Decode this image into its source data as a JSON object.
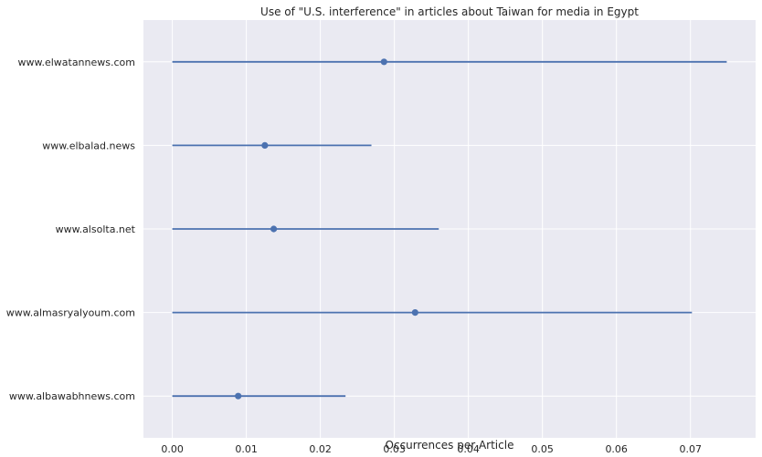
{
  "chart_data": {
    "type": "scatter",
    "title": "Use of \"U.S. interference\" in articles about Taiwan for media in Egypt",
    "xlabel": "Occurrences per Article",
    "ylabel": "",
    "xlim": [
      -0.0039,
      0.0788
    ],
    "xticks": [
      "0.00",
      "0.01",
      "0.02",
      "0.03",
      "0.04",
      "0.05",
      "0.06",
      "0.07"
    ],
    "categories": [
      "www.elwatannews.com",
      "www.elbalad.news",
      "www.alsolta.net",
      "www.almasryalyoum.com",
      "www.albawabhnews.com"
    ],
    "points": [
      {
        "label": "www.elwatannews.com",
        "value": 0.0286,
        "low": 0.0,
        "high": 0.0749
      },
      {
        "label": "www.elbalad.news",
        "value": 0.0125,
        "low": 0.0,
        "high": 0.0269
      },
      {
        "label": "www.alsolta.net",
        "value": 0.0137,
        "low": 0.0,
        "high": 0.036
      },
      {
        "label": "www.almasryalyoum.com",
        "value": 0.0328,
        "low": 0.0,
        "high": 0.0702
      },
      {
        "label": "www.albawabhnews.com",
        "value": 0.0089,
        "low": 0.0,
        "high": 0.0234
      }
    ],
    "grid": true,
    "colors": {
      "background": "#eaeaf2",
      "grid": "#ffffff",
      "series": "#4c72b0"
    }
  }
}
